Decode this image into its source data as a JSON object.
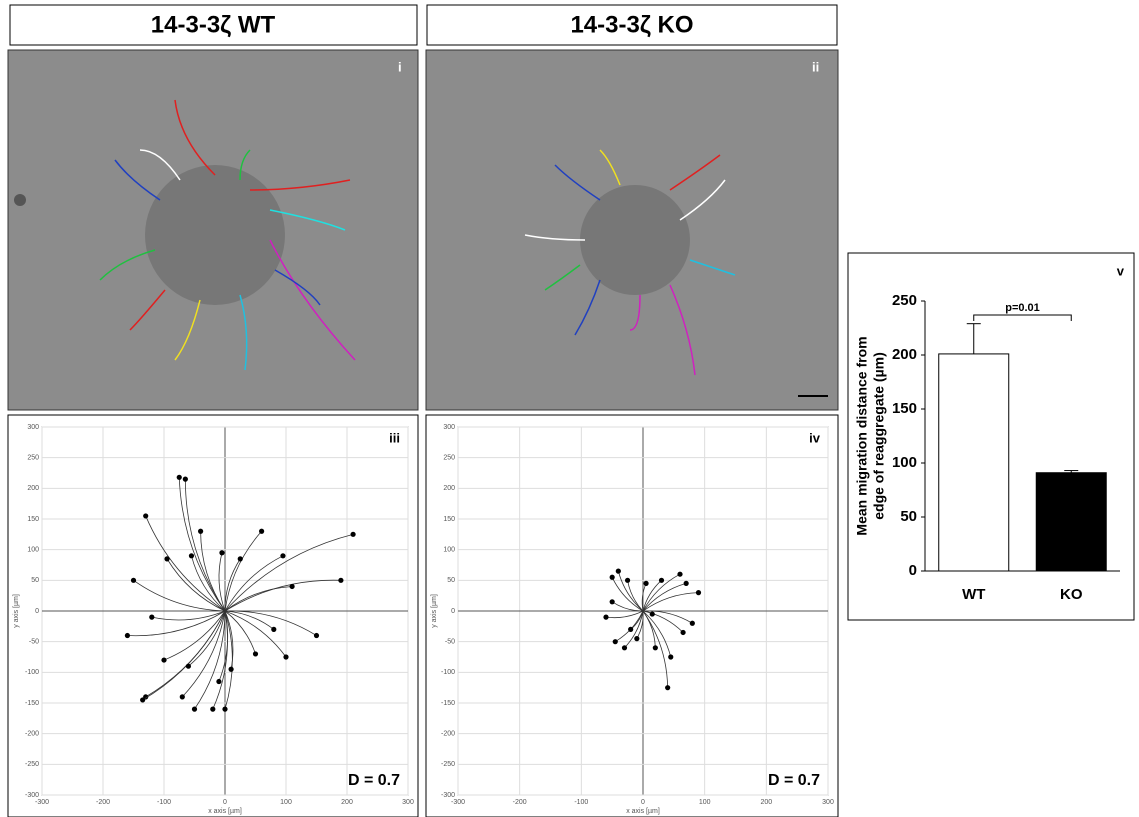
{
  "headers": [
    "14-3-3ζ WT",
    "14-3-3ζ KO"
  ],
  "image_panels": [
    {
      "label": "i"
    },
    {
      "label": "ii"
    }
  ],
  "chart_data": [
    {
      "type": "scatter",
      "label": "iii",
      "annotation": "D = 0.7",
      "x_label": "x axis [µm]",
      "y_label": "y axis [µm]",
      "xlim": [
        -300,
        300
      ],
      "ylim": [
        -300,
        300
      ],
      "xticks": [
        -300,
        -200,
        -100,
        0,
        100,
        200,
        300
      ],
      "yticks": [
        -300,
        -250,
        -200,
        -150,
        -100,
        -50,
        0,
        50,
        100,
        150,
        200,
        250,
        300
      ],
      "color": "#000000",
      "x": [
        -130,
        -75,
        -65,
        -150,
        -160,
        -130,
        -135,
        -100,
        -70,
        -50,
        -20,
        0,
        -10,
        50,
        100,
        150,
        190,
        210,
        95,
        60,
        25,
        -5,
        -40,
        -55,
        -95,
        -120,
        -60,
        10,
        80,
        110
      ],
      "y": [
        155,
        218,
        215,
        50,
        -40,
        -140,
        -145,
        -80,
        -140,
        -160,
        -160,
        -160,
        -115,
        -70,
        -75,
        -40,
        50,
        125,
        90,
        130,
        85,
        95,
        130,
        90,
        85,
        -10,
        -90,
        -95,
        -30,
        40
      ]
    },
    {
      "type": "scatter",
      "label": "iv",
      "annotation": "D = 0.7",
      "x_label": "x axis [µm]",
      "y_label": "y axis [µm]",
      "xlim": [
        -300,
        300
      ],
      "ylim": [
        -300,
        300
      ],
      "xticks": [
        -300,
        -200,
        -100,
        0,
        100,
        200,
        300
      ],
      "yticks": [
        -300,
        -250,
        -200,
        -150,
        -100,
        -50,
        0,
        50,
        100,
        150,
        200,
        250,
        300
      ],
      "color": "#000000",
      "x": [
        -40,
        -50,
        -50,
        -45,
        -30,
        -10,
        20,
        45,
        40,
        65,
        80,
        90,
        70,
        60,
        30,
        5,
        -25,
        -60,
        -20,
        15
      ],
      "y": [
        65,
        55,
        15,
        -50,
        -60,
        -45,
        -60,
        -75,
        -125,
        -35,
        -20,
        30,
        45,
        60,
        50,
        45,
        50,
        -10,
        -30,
        -5
      ]
    },
    {
      "type": "bar",
      "label": "v",
      "categories": [
        "WT",
        "KO"
      ],
      "values": [
        201,
        91
      ],
      "errors": [
        28,
        2
      ],
      "colors": [
        "#ffffff",
        "#000000"
      ],
      "y_label": [
        "Mean migration  distance from",
        "edge of reaggregate  (µm)"
      ],
      "ylim": [
        0,
        250
      ],
      "yticks": [
        0,
        50,
        100,
        150,
        200,
        250
      ],
      "annotation": "p=0.01"
    }
  ]
}
